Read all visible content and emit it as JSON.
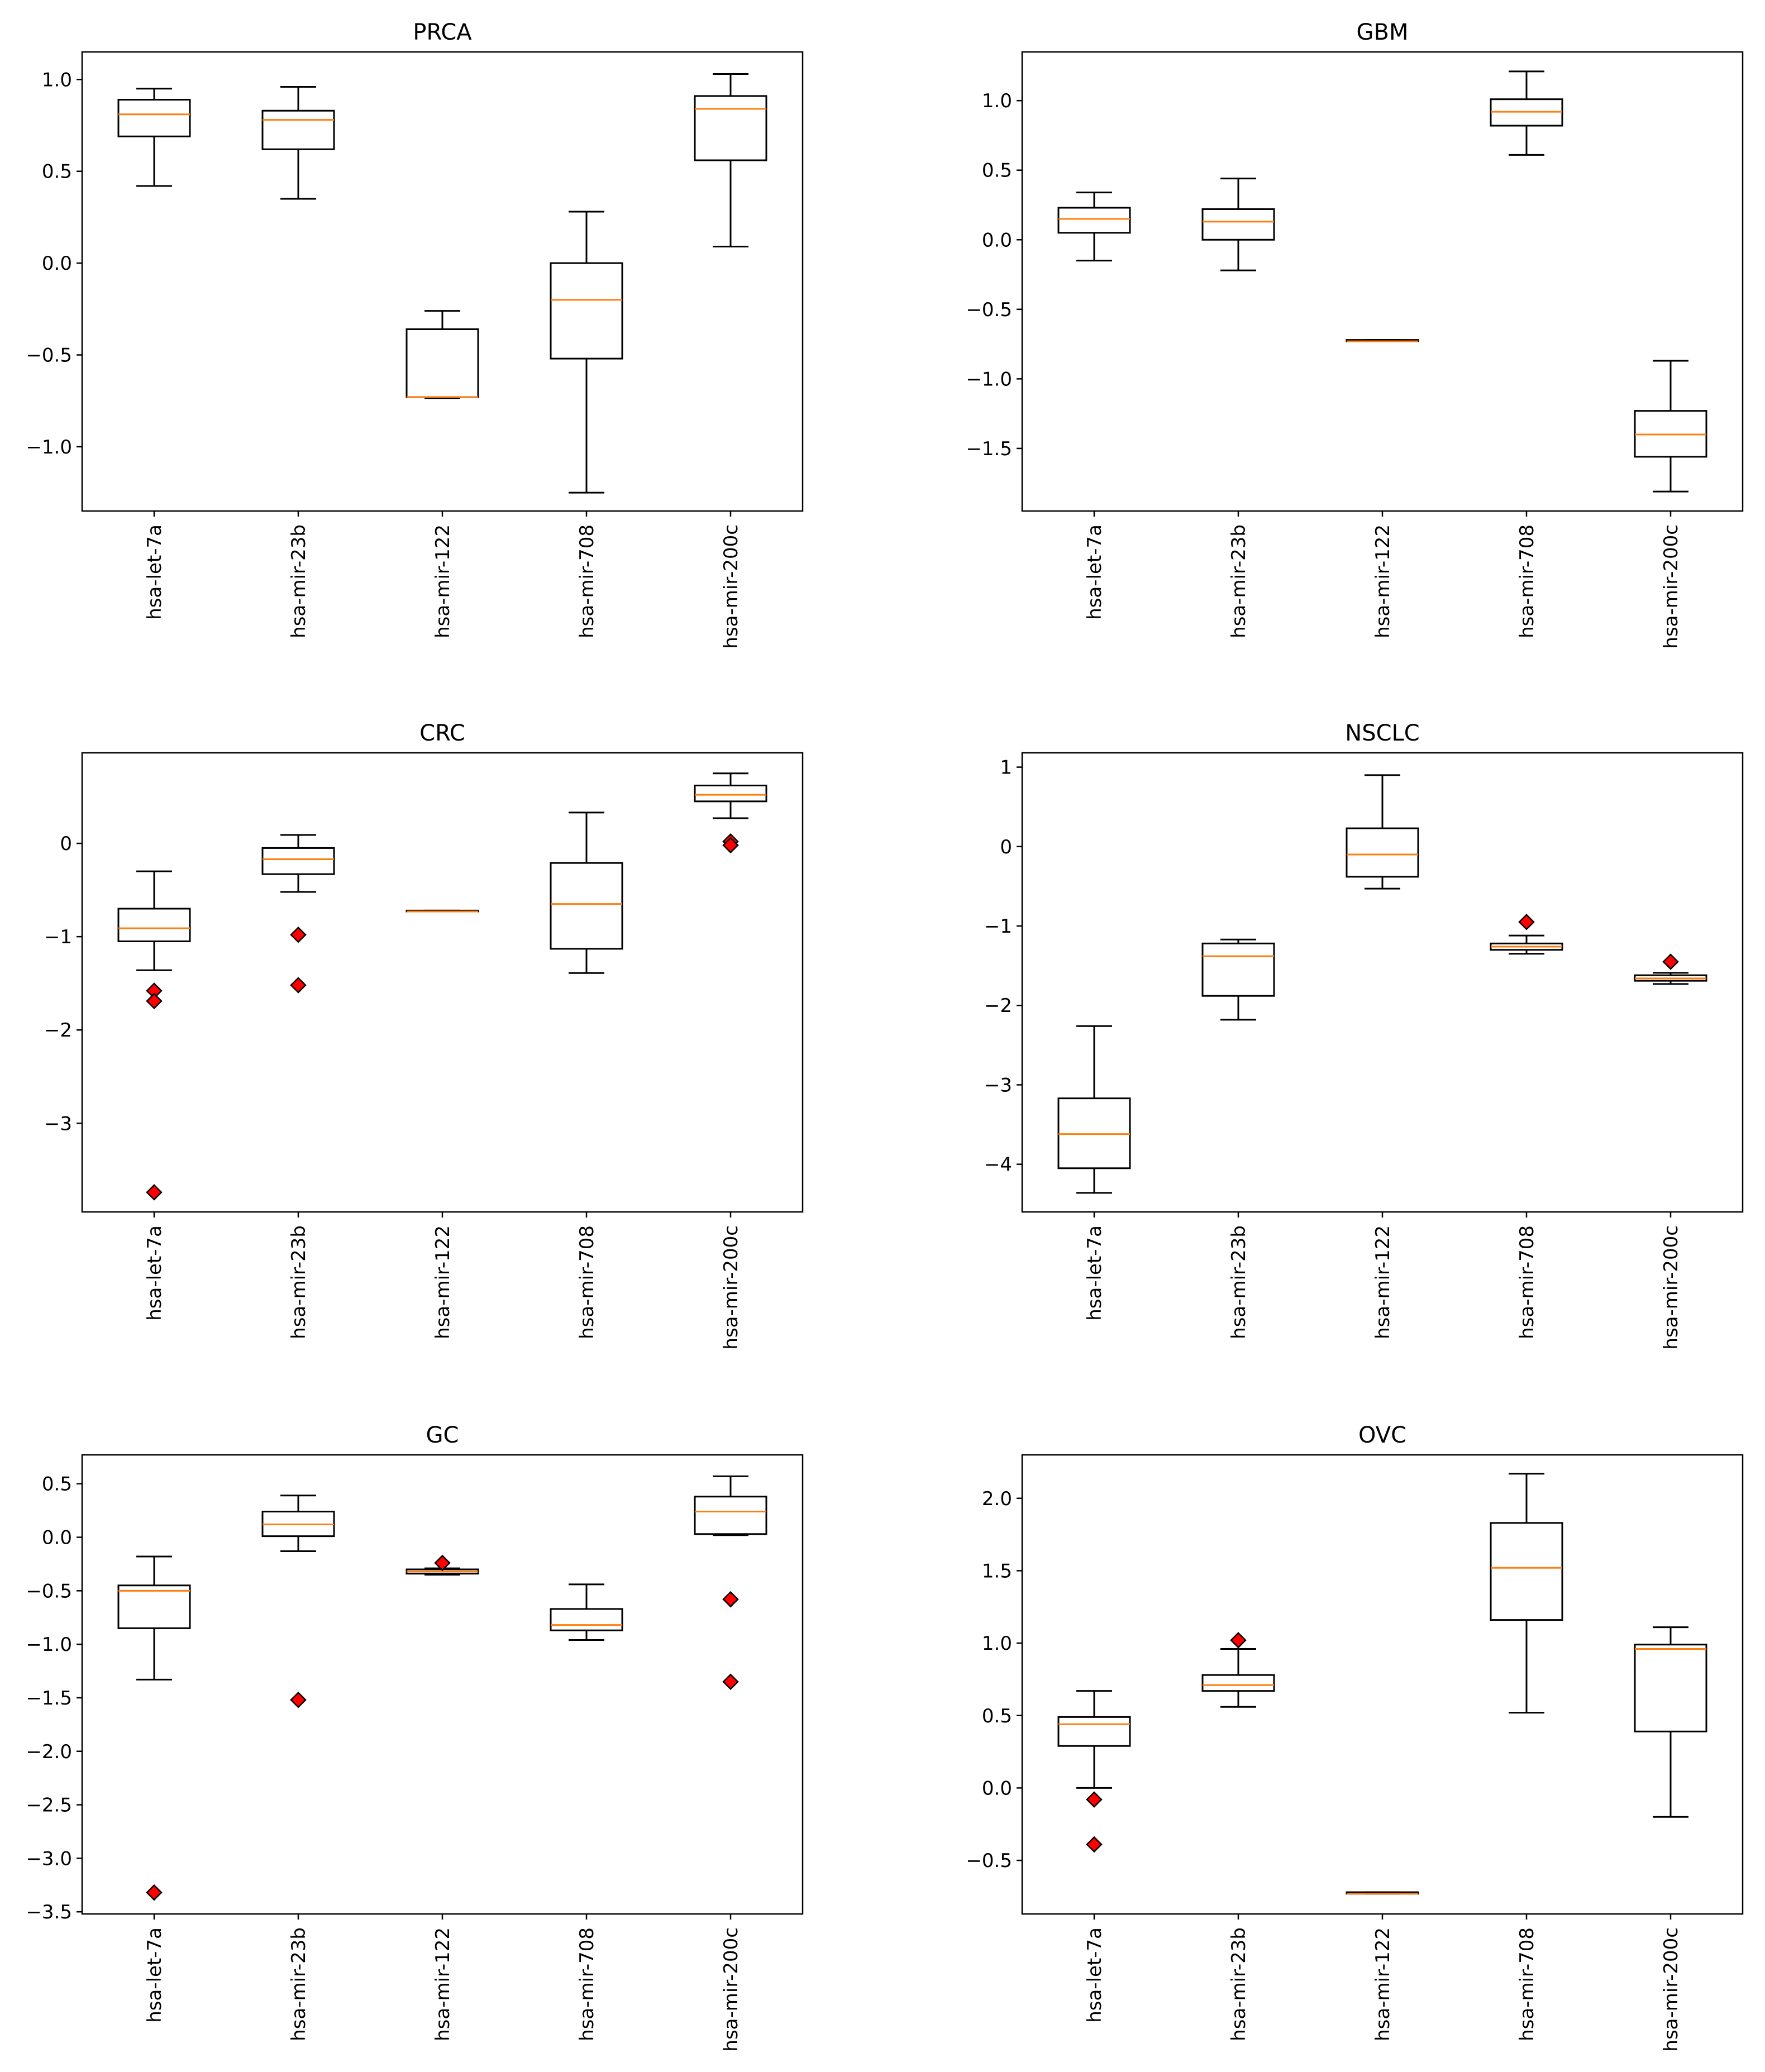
{
  "chart_data": [
    {
      "type": "box",
      "title": "PRCA",
      "categories": [
        "hsa-let-7a",
        "hsa-mir-23b",
        "hsa-mir-122",
        "hsa-mir-708",
        "hsa-mir-200c"
      ],
      "ylim": [
        -1.35,
        1.15
      ],
      "yticks": [
        -1.0,
        -0.5,
        0.0,
        0.5,
        1.0
      ],
      "ytick_labels": [
        "−1.0",
        "−0.5",
        "0.0",
        "0.5",
        "1.0"
      ],
      "boxes": [
        {
          "whislo": 0.42,
          "q1": 0.69,
          "med": 0.81,
          "q3": 0.89,
          "whishi": 0.95,
          "fliers": []
        },
        {
          "whislo": 0.35,
          "q1": 0.62,
          "med": 0.78,
          "q3": 0.83,
          "whishi": 0.96,
          "fliers": []
        },
        {
          "whislo": -0.735,
          "q1": -0.73,
          "med": -0.73,
          "q3": -0.36,
          "whishi": -0.26,
          "fliers": []
        },
        {
          "whislo": -1.25,
          "q1": -0.52,
          "med": -0.2,
          "q3": 0.0,
          "whishi": 0.28,
          "fliers": []
        },
        {
          "whislo": 0.09,
          "q1": 0.56,
          "med": 0.84,
          "q3": 0.91,
          "whishi": 1.03,
          "fliers": []
        }
      ]
    },
    {
      "type": "box",
      "title": "GBM",
      "categories": [
        "hsa-let-7a",
        "hsa-mir-23b",
        "hsa-mir-122",
        "hsa-mir-708",
        "hsa-mir-200c"
      ],
      "ylim": [
        -1.95,
        1.35
      ],
      "yticks": [
        -1.5,
        -1.0,
        -0.5,
        0.0,
        0.5,
        1.0
      ],
      "ytick_labels": [
        "−1.5",
        "−1.0",
        "−0.5",
        "0.0",
        "0.5",
        "1.0"
      ],
      "boxes": [
        {
          "whislo": -0.15,
          "q1": 0.05,
          "med": 0.15,
          "q3": 0.23,
          "whishi": 0.34,
          "fliers": []
        },
        {
          "whislo": -0.22,
          "q1": 0.0,
          "med": 0.13,
          "q3": 0.22,
          "whishi": 0.44,
          "fliers": []
        },
        {
          "whislo": -0.73,
          "q1": -0.73,
          "med": -0.73,
          "q3": -0.72,
          "whishi": -0.72,
          "fliers": []
        },
        {
          "whislo": 0.61,
          "q1": 0.82,
          "med": 0.92,
          "q3": 1.01,
          "whishi": 1.21,
          "fliers": []
        },
        {
          "whislo": -1.81,
          "q1": -1.56,
          "med": -1.4,
          "q3": -1.23,
          "whishi": -0.87,
          "fliers": []
        }
      ]
    },
    {
      "type": "box",
      "title": "CRC",
      "categories": [
        "hsa-let-7a",
        "hsa-mir-23b",
        "hsa-mir-122",
        "hsa-mir-708",
        "hsa-mir-200c"
      ],
      "ylim": [
        -3.95,
        0.97
      ],
      "yticks": [
        -3,
        -2,
        -1,
        0
      ],
      "ytick_labels": [
        "−3",
        "−2",
        "−1",
        "0"
      ],
      "boxes": [
        {
          "whislo": -1.36,
          "q1": -1.05,
          "med": -0.91,
          "q3": -0.7,
          "whishi": -0.3,
          "fliers": [
            -1.58,
            -1.69,
            -3.74
          ]
        },
        {
          "whislo": -0.52,
          "q1": -0.33,
          "med": -0.17,
          "q3": -0.05,
          "whishi": 0.09,
          "fliers": [
            -0.98,
            -1.52
          ]
        },
        {
          "whislo": -0.73,
          "q1": -0.73,
          "med": -0.73,
          "q3": -0.72,
          "whishi": -0.72,
          "fliers": []
        },
        {
          "whislo": -1.39,
          "q1": -1.13,
          "med": -0.65,
          "q3": -0.21,
          "whishi": 0.33,
          "fliers": []
        },
        {
          "whislo": 0.27,
          "q1": 0.45,
          "med": 0.52,
          "q3": 0.62,
          "whishi": 0.75,
          "fliers": [
            0.02,
            -0.02
          ]
        }
      ]
    },
    {
      "type": "box",
      "title": "NSCLC",
      "categories": [
        "hsa-let-7a",
        "hsa-mir-23b",
        "hsa-mir-122",
        "hsa-mir-708",
        "hsa-mir-200c"
      ],
      "ylim": [
        -4.6,
        1.18
      ],
      "yticks": [
        -4,
        -3,
        -2,
        -1,
        0,
        1
      ],
      "ytick_labels": [
        "−4",
        "−3",
        "−2",
        "−1",
        "0",
        "1"
      ],
      "boxes": [
        {
          "whislo": -4.36,
          "q1": -4.05,
          "med": -3.62,
          "q3": -3.17,
          "whishi": -2.26,
          "fliers": []
        },
        {
          "whislo": -2.18,
          "q1": -1.88,
          "med": -1.38,
          "q3": -1.22,
          "whishi": -1.17,
          "fliers": []
        },
        {
          "whislo": -0.53,
          "q1": -0.38,
          "med": -0.1,
          "q3": 0.23,
          "whishi": 0.9,
          "fliers": []
        },
        {
          "whislo": -1.35,
          "q1": -1.3,
          "med": -1.26,
          "q3": -1.22,
          "whishi": -1.12,
          "fliers": [
            -0.95
          ]
        },
        {
          "whislo": -1.73,
          "q1": -1.69,
          "med": -1.66,
          "q3": -1.62,
          "whishi": -1.59,
          "fliers": [
            -1.45
          ]
        }
      ]
    },
    {
      "type": "box",
      "title": "GC",
      "categories": [
        "hsa-let-7a",
        "hsa-mir-23b",
        "hsa-mir-122",
        "hsa-mir-708",
        "hsa-mir-200c"
      ],
      "ylim": [
        -3.52,
        0.77
      ],
      "yticks": [
        -3.5,
        -3.0,
        -2.5,
        -2.0,
        -1.5,
        -1.0,
        -0.5,
        0.0,
        0.5
      ],
      "ytick_labels": [
        "−3.5",
        "−3.0",
        "−2.5",
        "−2.0",
        "−1.5",
        "−1.0",
        "−0.5",
        "0.0",
        "0.5"
      ],
      "boxes": [
        {
          "whislo": -1.33,
          "q1": -0.85,
          "med": -0.5,
          "q3": -0.45,
          "whishi": -0.18,
          "fliers": [
            -3.32
          ]
        },
        {
          "whislo": -0.13,
          "q1": 0.01,
          "med": 0.12,
          "q3": 0.24,
          "whishi": 0.39,
          "fliers": [
            -1.52
          ]
        },
        {
          "whislo": -0.35,
          "q1": -0.34,
          "med": -0.32,
          "q3": -0.3,
          "whishi": -0.29,
          "fliers": [
            -0.24
          ]
        },
        {
          "whislo": -0.96,
          "q1": -0.87,
          "med": -0.82,
          "q3": -0.67,
          "whishi": -0.44,
          "fliers": []
        },
        {
          "whislo": 0.02,
          "q1": 0.03,
          "med": 0.24,
          "q3": 0.38,
          "whishi": 0.57,
          "fliers": [
            -0.58,
            -1.35
          ]
        }
      ]
    },
    {
      "type": "box",
      "title": "OVC",
      "categories": [
        "hsa-let-7a",
        "hsa-mir-23b",
        "hsa-mir-122",
        "hsa-mir-708",
        "hsa-mir-200c"
      ],
      "ylim": [
        -0.87,
        2.3
      ],
      "yticks": [
        -0.5,
        0.0,
        0.5,
        1.0,
        1.5,
        2.0
      ],
      "ytick_labels": [
        "−0.5",
        "0.0",
        "0.5",
        "1.0",
        "1.5",
        "2.0"
      ],
      "boxes": [
        {
          "whislo": 0.0,
          "q1": 0.29,
          "med": 0.44,
          "q3": 0.49,
          "whishi": 0.67,
          "fliers": [
            -0.08,
            -0.39
          ]
        },
        {
          "whislo": 0.56,
          "q1": 0.67,
          "med": 0.71,
          "q3": 0.78,
          "whishi": 0.96,
          "fliers": [
            1.02
          ]
        },
        {
          "whislo": -0.73,
          "q1": -0.73,
          "med": -0.73,
          "q3": -0.72,
          "whishi": -0.72,
          "fliers": []
        },
        {
          "whislo": 0.52,
          "q1": 1.16,
          "med": 1.52,
          "q3": 1.83,
          "whishi": 2.17,
          "fliers": []
        },
        {
          "whislo": -0.2,
          "q1": 0.39,
          "med": 0.96,
          "q3": 0.99,
          "whishi": 1.11,
          "fliers": []
        }
      ]
    }
  ]
}
